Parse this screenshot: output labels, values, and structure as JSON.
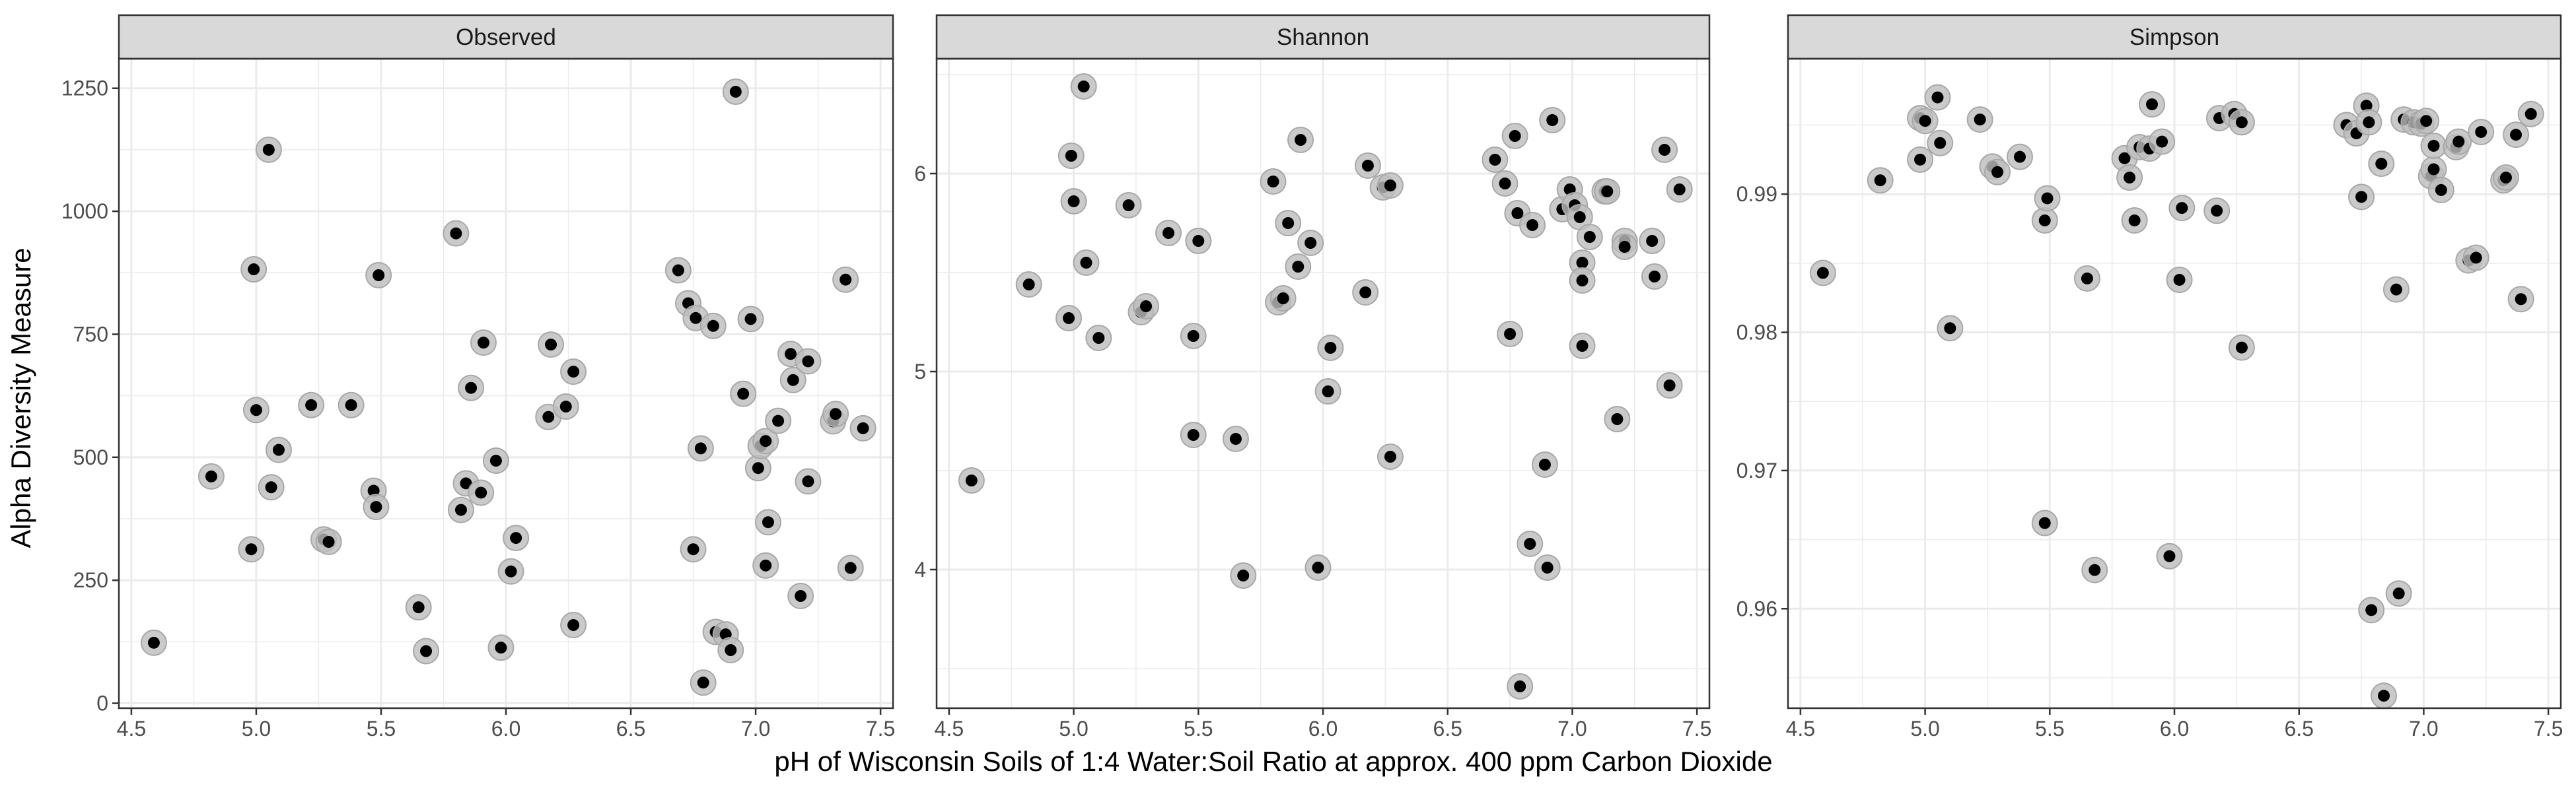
{
  "chart_data": {
    "type": "scatter",
    "xlabel": "pH of Wisconsin Soils of 1:4 Water:Soil Ratio at approx. 400 ppm Carbon Dioxide",
    "ylabel": "Alpha Diversity Measure",
    "colors": {
      "point": "#000000",
      "halo": "#bdbdbd",
      "strip": "#d9d9d9",
      "grid": "#ebebeb",
      "panel_border": "#333333"
    },
    "panels": [
      {
        "title": "Observed",
        "xlim": [
          4.45,
          7.55
        ],
        "ylim": [
          -10,
          1310
        ],
        "xticks": [
          "4.5",
          "5.0",
          "5.5",
          "6.0",
          "6.5",
          "7.0",
          "7.5"
        ],
        "yticks": [
          "0",
          "250",
          "500",
          "750",
          "1000",
          "1250"
        ],
        "points": [
          [
            4.59,
            123
          ],
          [
            4.82,
            461
          ],
          [
            4.98,
            313
          ],
          [
            4.99,
            882
          ],
          [
            5.0,
            596
          ],
          [
            5.05,
            1125
          ],
          [
            5.06,
            439
          ],
          [
            5.09,
            515
          ],
          [
            5.22,
            606
          ],
          [
            5.27,
            333
          ],
          [
            5.29,
            328
          ],
          [
            5.38,
            606
          ],
          [
            5.47,
            432
          ],
          [
            5.48,
            399
          ],
          [
            5.49,
            870
          ],
          [
            5.65,
            195
          ],
          [
            5.68,
            106
          ],
          [
            5.8,
            955
          ],
          [
            5.82,
            393
          ],
          [
            5.84,
            447
          ],
          [
            5.86,
            641
          ],
          [
            5.9,
            428
          ],
          [
            5.91,
            733
          ],
          [
            5.96,
            493
          ],
          [
            5.98,
            113
          ],
          [
            6.02,
            268
          ],
          [
            6.04,
            336
          ],
          [
            6.17,
            582
          ],
          [
            6.18,
            729
          ],
          [
            6.24,
            603
          ],
          [
            6.27,
            674
          ],
          [
            6.27,
            159
          ],
          [
            6.69,
            880
          ],
          [
            6.73,
            813
          ],
          [
            6.75,
            313
          ],
          [
            6.76,
            783
          ],
          [
            6.78,
            518
          ],
          [
            6.79,
            42
          ],
          [
            6.83,
            767
          ],
          [
            6.84,
            145
          ],
          [
            6.88,
            140
          ],
          [
            6.9,
            108
          ],
          [
            6.92,
            1243
          ],
          [
            6.95,
            629
          ],
          [
            6.98,
            781
          ],
          [
            7.01,
            478
          ],
          [
            7.02,
            523
          ],
          [
            7.04,
            533
          ],
          [
            7.05,
            368
          ],
          [
            7.09,
            574
          ],
          [
            7.04,
            280
          ],
          [
            7.14,
            710
          ],
          [
            7.15,
            657
          ],
          [
            7.18,
            218
          ],
          [
            7.21,
            451
          ],
          [
            7.21,
            695
          ],
          [
            7.31,
            573
          ],
          [
            7.32,
            588
          ],
          [
            7.36,
            861
          ],
          [
            7.38,
            275
          ],
          [
            7.43,
            559
          ]
        ]
      },
      {
        "title": "Shannon",
        "xlim": [
          4.45,
          7.55
        ],
        "ylim": [
          3.3,
          6.58
        ],
        "xticks": [
          "4.5",
          "5.0",
          "5.5",
          "6.0",
          "6.5",
          "7.0",
          "7.5"
        ],
        "yticks": [
          "4",
          "5",
          "6"
        ],
        "points": [
          [
            4.59,
            4.45
          ],
          [
            4.82,
            5.44
          ],
          [
            4.98,
            5.27
          ],
          [
            4.99,
            6.09
          ],
          [
            5.0,
            5.86
          ],
          [
            5.04,
            6.44
          ],
          [
            5.05,
            5.55
          ],
          [
            5.1,
            5.17
          ],
          [
            5.22,
            5.84
          ],
          [
            5.27,
            5.3
          ],
          [
            5.29,
            5.33
          ],
          [
            5.38,
            5.7
          ],
          [
            5.48,
            5.18
          ],
          [
            5.48,
            4.68
          ],
          [
            5.5,
            5.66
          ],
          [
            5.65,
            4.66
          ],
          [
            5.68,
            3.97
          ],
          [
            5.8,
            5.96
          ],
          [
            5.82,
            5.35
          ],
          [
            5.84,
            5.37
          ],
          [
            5.86,
            5.75
          ],
          [
            5.9,
            5.53
          ],
          [
            5.91,
            6.17
          ],
          [
            5.95,
            5.65
          ],
          [
            5.98,
            4.01
          ],
          [
            6.02,
            4.9
          ],
          [
            6.03,
            5.12
          ],
          [
            6.17,
            5.4
          ],
          [
            6.18,
            6.04
          ],
          [
            6.24,
            5.93
          ],
          [
            6.27,
            5.94
          ],
          [
            6.27,
            4.57
          ],
          [
            6.69,
            6.07
          ],
          [
            6.73,
            5.95
          ],
          [
            6.75,
            5.19
          ],
          [
            6.77,
            6.19
          ],
          [
            6.78,
            5.8
          ],
          [
            6.79,
            3.41
          ],
          [
            6.83,
            4.13
          ],
          [
            6.84,
            5.74
          ],
          [
            6.89,
            4.53
          ],
          [
            6.9,
            4.01
          ],
          [
            6.92,
            6.27
          ],
          [
            6.96,
            5.82
          ],
          [
            6.99,
            5.92
          ],
          [
            7.01,
            5.84
          ],
          [
            7.03,
            5.78
          ],
          [
            7.04,
            5.55
          ],
          [
            7.04,
            5.46
          ],
          [
            7.04,
            5.13
          ],
          [
            7.07,
            5.68
          ],
          [
            7.13,
            5.91
          ],
          [
            7.14,
            5.91
          ],
          [
            7.18,
            4.76
          ],
          [
            7.21,
            5.66
          ],
          [
            7.21,
            5.63
          ],
          [
            7.32,
            5.66
          ],
          [
            7.33,
            5.48
          ],
          [
            7.37,
            6.12
          ],
          [
            7.39,
            4.93
          ],
          [
            7.43,
            5.92
          ]
        ]
      },
      {
        "title": "Simpson",
        "xlim": [
          4.45,
          7.55
        ],
        "ylim": [
          0.9528,
          0.9998
        ],
        "xticks": [
          "4.5",
          "5.0",
          "5.5",
          "6.0",
          "6.5",
          "7.0",
          "7.5"
        ],
        "yticks": [
          "0.96",
          "0.97",
          "0.98",
          "0.99"
        ],
        "points": [
          [
            4.59,
            0.9843
          ],
          [
            4.82,
            0.991
          ],
          [
            4.98,
            0.9925
          ],
          [
            4.98,
            0.9955
          ],
          [
            5.0,
            0.9953
          ],
          [
            5.05,
            0.997
          ],
          [
            5.06,
            0.9937
          ],
          [
            5.1,
            0.9803
          ],
          [
            5.22,
            0.9954
          ],
          [
            5.27,
            0.992
          ],
          [
            5.29,
            0.9916
          ],
          [
            5.38,
            0.9927
          ],
          [
            5.48,
            0.9881
          ],
          [
            5.48,
            0.9662
          ],
          [
            5.49,
            0.9897
          ],
          [
            5.65,
            0.9839
          ],
          [
            5.68,
            0.9628
          ],
          [
            5.8,
            0.9926
          ],
          [
            5.82,
            0.9912
          ],
          [
            5.84,
            0.9881
          ],
          [
            5.86,
            0.9934
          ],
          [
            5.9,
            0.9933
          ],
          [
            5.91,
            0.9965
          ],
          [
            5.95,
            0.9938
          ],
          [
            5.98,
            0.9638
          ],
          [
            6.02,
            0.9838
          ],
          [
            6.03,
            0.989
          ],
          [
            6.17,
            0.9888
          ],
          [
            6.18,
            0.9955
          ],
          [
            6.24,
            0.9958
          ],
          [
            6.27,
            0.9952
          ],
          [
            6.27,
            0.9789
          ],
          [
            6.69,
            0.995
          ],
          [
            6.73,
            0.9944
          ],
          [
            6.75,
            0.9898
          ],
          [
            6.77,
            0.9964
          ],
          [
            6.78,
            0.9952
          ],
          [
            6.79,
            0.9599
          ],
          [
            6.83,
            0.9922
          ],
          [
            6.84,
            0.9537
          ],
          [
            6.89,
            0.9831
          ],
          [
            6.9,
            0.9611
          ],
          [
            6.92,
            0.9954
          ],
          [
            6.96,
            0.9952
          ],
          [
            6.99,
            0.9951
          ],
          [
            7.01,
            0.9953
          ],
          [
            7.03,
            0.9913
          ],
          [
            7.04,
            0.9918
          ],
          [
            7.04,
            0.9935
          ],
          [
            7.07,
            0.9903
          ],
          [
            7.13,
            0.9934
          ],
          [
            7.14,
            0.9938
          ],
          [
            7.18,
            0.9852
          ],
          [
            7.21,
            0.9854
          ],
          [
            7.23,
            0.9945
          ],
          [
            7.32,
            0.991
          ],
          [
            7.33,
            0.9912
          ],
          [
            7.37,
            0.9943
          ],
          [
            7.39,
            0.9824
          ],
          [
            7.43,
            0.9958
          ]
        ]
      }
    ]
  }
}
